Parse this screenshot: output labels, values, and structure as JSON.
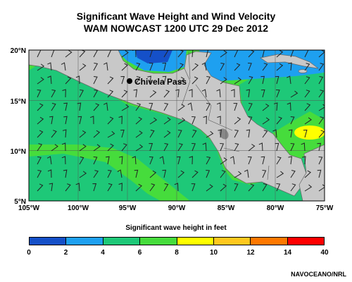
{
  "title": {
    "line1": "Significant Wave Height and Wind Velocity",
    "line2": "WAM NOWCAST 1200 UTC 29 Dec 2012"
  },
  "map": {
    "lat_labels": [
      "20°N",
      "15°N",
      "10°N",
      "5°N"
    ],
    "lon_labels": [
      "105°W",
      "100°W",
      "95°W",
      "90°W",
      "85°W",
      "80°W",
      "75°W"
    ],
    "extent": {
      "lon": [
        -105,
        -75
      ],
      "lat": [
        5,
        20
      ]
    },
    "location": {
      "name": "Chivela Pass",
      "lon": -95,
      "lat": 17
    },
    "land_color": "#c8c8c8",
    "grid": true
  },
  "legend": {
    "title": "Significant wave height in feet",
    "ticks": [
      "0",
      "2",
      "4",
      "6",
      "8",
      "10",
      "12",
      "14",
      "40"
    ],
    "colors": [
      "#1550c8",
      "#1ea0f0",
      "#1ec878",
      "#46dc3c",
      "#ffff00",
      "#ffc81e",
      "#ff7800",
      "#ff0000"
    ]
  },
  "credit": "NAVOCEANO/NRL"
}
